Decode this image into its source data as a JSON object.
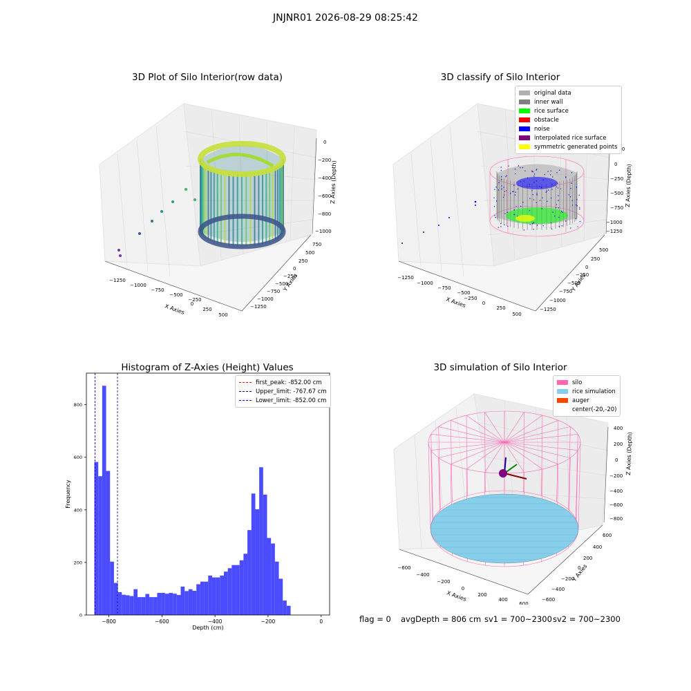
{
  "suptitle": "JNJNR01 2026-08-29 08:25:42",
  "panels": {
    "raw": {
      "title": "3D Plot of Silo Interior(row data)",
      "xlabel": "X Axies",
      "ylabel": "Y Axies",
      "zlabel": "Z Axies (Depth)",
      "xticks": [
        "−1250",
        "−1000",
        "−750",
        "−500",
        "−250",
        "0",
        "250",
        "500"
      ],
      "yticks": [
        "750",
        "500",
        "250",
        "0",
        "−250",
        "−500",
        "−750",
        "−1000",
        "−1250"
      ],
      "zticks": [
        "0",
        "−200",
        "−400",
        "−600",
        "−800",
        "−1000"
      ]
    },
    "classify": {
      "title": "3D classify of Silo Interior",
      "xlabel": "X Axies",
      "ylabel": "Y Axies",
      "zlabel": "Z Axies (Depth)",
      "xticks": [
        "−1250",
        "−1000",
        "−750",
        "−500",
        "−250",
        "0",
        "250",
        "500"
      ],
      "yticks": [
        "500",
        "250",
        "0",
        "−250",
        "−500",
        "−750",
        "−1000",
        "−1250"
      ],
      "zticks": [
        "250",
        "0",
        "−250",
        "−500",
        "−750",
        "−1000",
        "−1250"
      ],
      "legend": [
        {
          "label": "original data",
          "color": "#b0b0b0"
        },
        {
          "label": "inner wall",
          "color": "#808080"
        },
        {
          "label": "rice surface",
          "color": "#00ff00"
        },
        {
          "label": "obstacle",
          "color": "#ff0000"
        },
        {
          "label": "noise",
          "color": "#0000ff"
        },
        {
          "label": "interpolated rice surface",
          "color": "#800080"
        },
        {
          "label": "symmetric generated points",
          "color": "#ffff00"
        }
      ]
    },
    "simulation": {
      "title": "3D simulation of Silo Interior",
      "xlabel": "X Axies",
      "ylabel": "Y Axies",
      "zlabel": "Z Axies (Depth)",
      "xticks": [
        "−600",
        "−400",
        "−200",
        "0",
        "200",
        "400",
        "600"
      ],
      "yticks": [
        "600",
        "400",
        "200",
        "0",
        "−200",
        "−400",
        "−600"
      ],
      "zticks": [
        "400",
        "200",
        "0",
        "−200",
        "−400",
        "−600",
        "−800"
      ],
      "legend": [
        {
          "label": "silo",
          "color": "#ff69b4",
          "kind": "patch"
        },
        {
          "label": "rice simulation",
          "color": "#87ceeb",
          "kind": "patch"
        },
        {
          "label": "auger",
          "color": "#ff4500",
          "kind": "patch"
        },
        {
          "label": "center(-20,-20)",
          "color": "#ffffff",
          "kind": "none"
        }
      ],
      "footer": {
        "flag": "flag = 0",
        "avg": "avgDepth = 806 cm",
        "sv1": "sv1 = 700~2300",
        "sv2": "sv2 = 700~2300"
      }
    }
  },
  "chart_data": [
    {
      "type": "scatter",
      "title": "3D Plot of Silo Interior(row data)",
      "xlabel": "X Axies",
      "ylabel": "Y Axies",
      "zlabel": "Z Axies (Depth)",
      "xlim": [
        -1350,
        550
      ],
      "ylim": [
        -1350,
        800
      ],
      "zlim": [
        -1100,
        50
      ],
      "colormap": "viridis"
    },
    {
      "type": "scatter",
      "title": "3D classify of Silo Interior",
      "xlabel": "X Axies",
      "ylabel": "Y Axies",
      "zlabel": "Z Axies (Depth)",
      "xlim": [
        -1350,
        550
      ],
      "ylim": [
        -1350,
        600
      ],
      "zlim": [
        -1350,
        450
      ],
      "series": [
        {
          "name": "original data",
          "color": "#b0b0b0"
        },
        {
          "name": "inner wall",
          "color": "#808080"
        },
        {
          "name": "rice surface",
          "color": "#00ff00"
        },
        {
          "name": "obstacle",
          "color": "#ff0000"
        },
        {
          "name": "noise",
          "color": "#0000ff"
        },
        {
          "name": "interpolated rice surface",
          "color": "#800080"
        },
        {
          "name": "symmetric generated points",
          "color": "#ffff00"
        }
      ]
    },
    {
      "type": "bar",
      "title": "Histogram of Z-Axies (Height) Values",
      "xlabel": "Depth (cm)",
      "ylabel": "Frequency",
      "xlim": [
        -885,
        32
      ],
      "ylim": [
        0,
        920
      ],
      "xticks": [
        -800,
        -600,
        -400,
        -200,
        0
      ],
      "yticks": [
        0,
        200,
        400,
        600,
        800
      ],
      "bin_start": -855,
      "bin_width": 14.8,
      "values": [
        582,
        528,
        872,
        548,
        203,
        122,
        87,
        77,
        75,
        72,
        98,
        68,
        68,
        80,
        68,
        68,
        84,
        84,
        81,
        84,
        81,
        76,
        108,
        91,
        98,
        92,
        117,
        127,
        127,
        150,
        143,
        143,
        150,
        165,
        178,
        190,
        190,
        208,
        233,
        323,
        462,
        402,
        562,
        458,
        293,
        272,
        203,
        138,
        55,
        35
      ],
      "color": "#4b4bff",
      "lines": [
        {
          "name": "first_peak: -852.00 cm",
          "x": -852.0,
          "color": "#ff0000"
        },
        {
          "name": "Upper_limit: -767.67 cm",
          "x": -767.67,
          "color": "#00008b"
        },
        {
          "name": "Lower_limit: -852.00 cm",
          "x": -852.0,
          "color": "#0000ff"
        }
      ],
      "legend": "top-right"
    },
    {
      "type": "3d",
      "title": "3D simulation of Silo Interior",
      "xlabel": "X Axies",
      "ylabel": "Y Axies",
      "zlabel": "Z Axies (Depth)",
      "xlim": [
        -650,
        650
      ],
      "ylim": [
        -650,
        650
      ],
      "zlim": [
        -900,
        450
      ],
      "series": [
        {
          "name": "silo",
          "color": "#ff69b4"
        },
        {
          "name": "rice simulation",
          "color": "#87ceeb"
        },
        {
          "name": "auger",
          "color": "#ff4500"
        }
      ]
    }
  ]
}
